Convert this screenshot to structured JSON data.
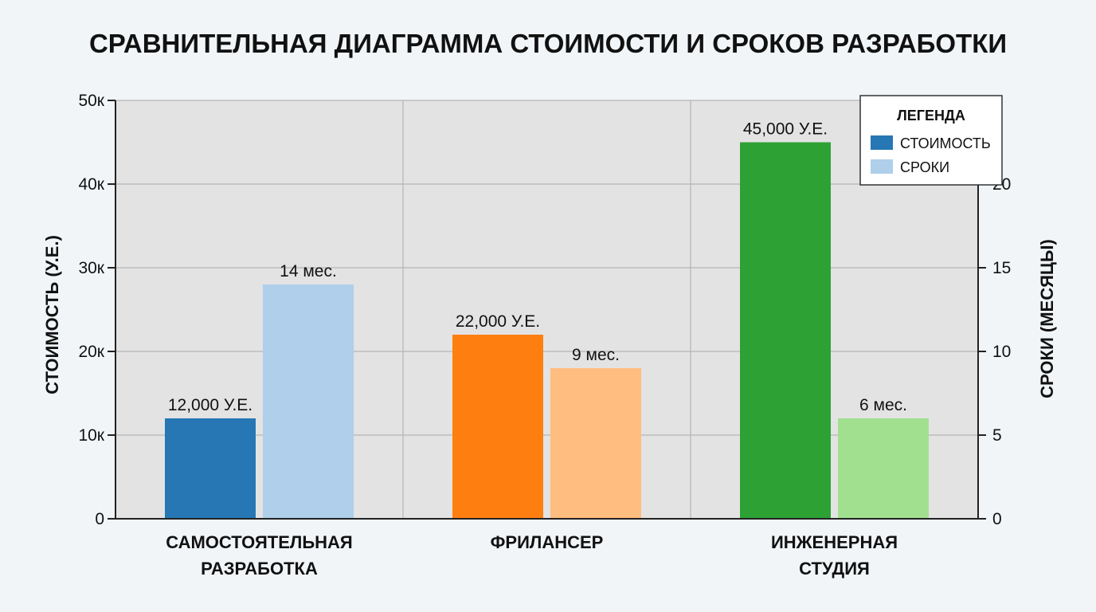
{
  "chart_data": {
    "type": "bar",
    "title": "СРАВНИТЕЛЬНАЯ ДИАГРАММА СТОИМОСТИ И СРОКОВ РАЗРАБОТКИ",
    "categories": [
      [
        "САМОСТОЯТЕЛЬНАЯ",
        "РАЗРАБОТКА"
      ],
      [
        "ФРИЛАНСЕР"
      ],
      [
        "ИНЖЕНЕРНАЯ",
        "СТУДИЯ"
      ]
    ],
    "ylabel": "СТОИМОСТЬ (У.Е.)",
    "y2label": "СРОКИ (МЕСЯЦЫ)",
    "ylim": [
      0,
      50000
    ],
    "y2lim": [
      0,
      25
    ],
    "yticks": [
      0,
      10000,
      20000,
      30000,
      40000,
      50000
    ],
    "ytick_labels": [
      "0",
      "10к",
      "20к",
      "30к",
      "40к",
      "50к"
    ],
    "y2ticks": [
      0,
      5,
      10,
      15,
      20
    ],
    "y2tick_labels": [
      "0",
      "5",
      "10",
      "15",
      "20"
    ],
    "grid": true,
    "series": [
      {
        "name": "СТОИМОСТЬ",
        "axis": "left",
        "values": [
          12000,
          22000,
          45000
        ],
        "labels": [
          "12,000 У.Е.",
          "22,000 У.Е.",
          "45,000 У.Е."
        ],
        "colors": [
          "#2677b4",
          "#fe7f10",
          "#2ea134"
        ]
      },
      {
        "name": "СРОКИ",
        "axis": "right",
        "values": [
          14,
          9,
          6
        ],
        "labels": [
          "14 мес.",
          "9 мес.",
          "6 мес."
        ],
        "colors": [
          "#afcfeb",
          "#ffbd7f",
          "#a0e08f"
        ]
      }
    ],
    "legend": {
      "title": "ЛЕГЕНДА",
      "placement": "top-right",
      "entries": [
        {
          "label": "СТОИМОСТЬ",
          "color": "#2677b4"
        },
        {
          "label": "СРОКИ",
          "color": "#afcfeb"
        }
      ]
    }
  }
}
